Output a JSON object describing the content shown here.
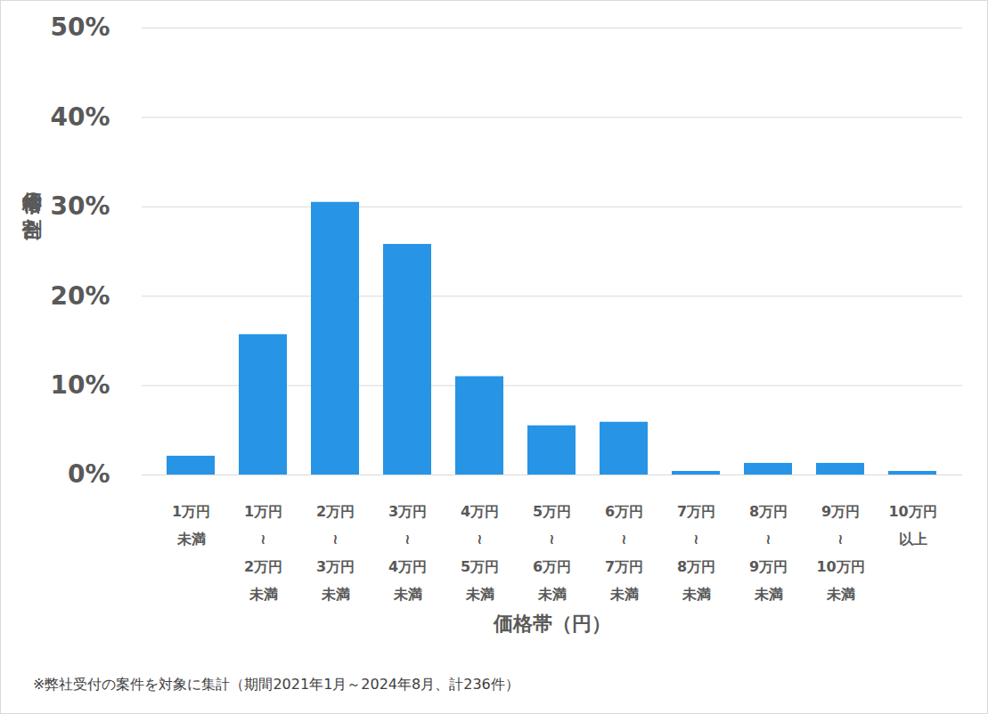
{
  "chart_data": {
    "type": "bar",
    "categories": [
      "1万円\n未満",
      "1万円\n≀\n2万円\n未満",
      "2万円\n≀\n3万円\n未満",
      "3万円\n≀\n4万円\n未満",
      "4万円\n≀\n5万円\n未満",
      "5万円\n≀\n6万円\n未満",
      "6万円\n≀\n7万円\n未満",
      "7万円\n≀\n8万円\n未満",
      "8万円\n≀\n9万円\n未満",
      "9万円\n≀\n10万円\n未満",
      "10万円\n以上"
    ],
    "values": [
      2.1,
      15.7,
      30.5,
      25.8,
      11.0,
      5.5,
      5.9,
      0.4,
      1.3,
      1.3,
      0.4
    ],
    "color": "#2794e6",
    "x_label": "価格帯（円）",
    "y_label": "価格帯の割合",
    "caption": "※弊社受付の案件を対象に集計（期間2021年1月～2024年8月、計236件）",
    "ylim": [
      0,
      50
    ],
    "yticks": [
      {
        "value": 0,
        "label": "0%"
      },
      {
        "value": 10,
        "label": "10%"
      },
      {
        "value": 20,
        "label": "20%"
      },
      {
        "value": 30,
        "label": "30%"
      },
      {
        "value": 40,
        "label": "40%"
      },
      {
        "value": 50,
        "label": "50%"
      }
    ],
    "grid": true
  }
}
